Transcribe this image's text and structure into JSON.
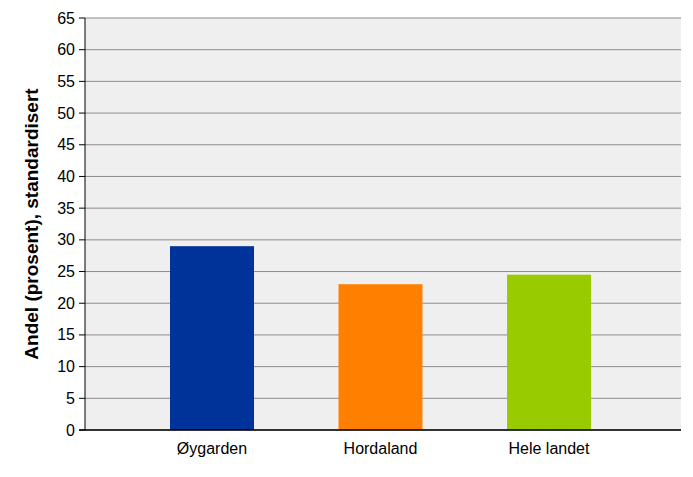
{
  "chart_data": {
    "type": "bar",
    "y_label": "Andel (prosent), standardisert",
    "categories": [
      "Øygarden",
      "Hordaland",
      "Hele landet"
    ],
    "values": [
      29,
      23,
      24.5
    ],
    "colors": [
      "#003399",
      "#ff8000",
      "#99cc00"
    ],
    "ylim": [
      0,
      65
    ],
    "yticks": [
      0,
      5,
      10,
      15,
      20,
      25,
      30,
      35,
      40,
      45,
      50,
      55,
      60,
      65
    ],
    "grid": true
  }
}
